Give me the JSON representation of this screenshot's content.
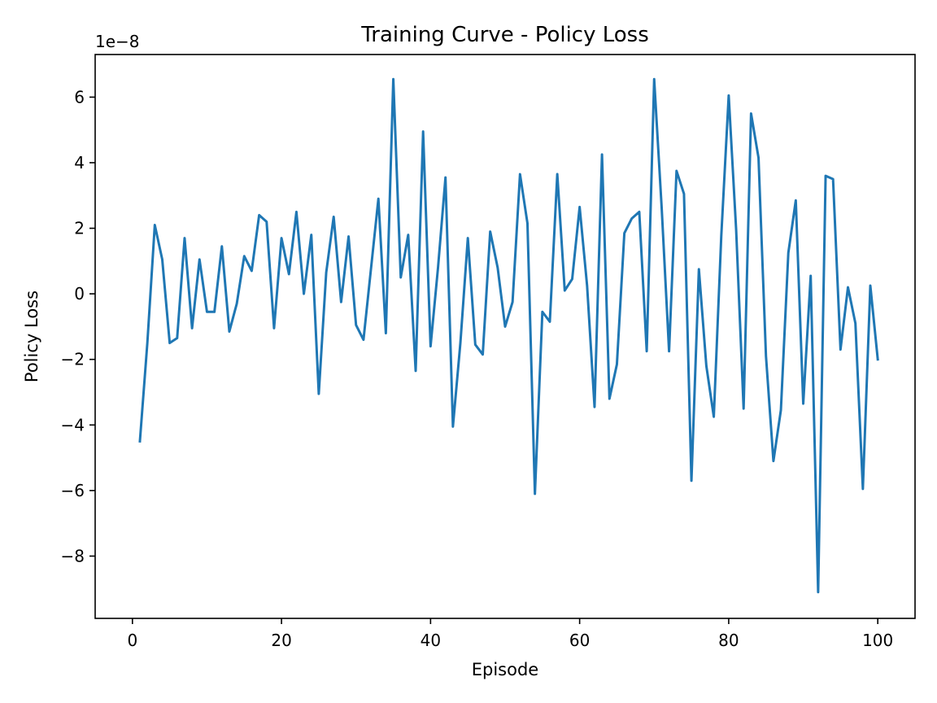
{
  "chart_data": {
    "type": "line",
    "title": "Training Curve - Policy Loss",
    "xlabel": "Episode",
    "ylabel": "Policy Loss",
    "y_offset_label": "1e−8",
    "xlim": [
      -5,
      105
    ],
    "ylim": [
      -9.9,
      7.3
    ],
    "xticks": [
      0,
      20,
      40,
      60,
      80,
      100
    ],
    "yticks": [
      -8,
      -6,
      -4,
      -2,
      0,
      2,
      4,
      6
    ],
    "ytick_labels": [
      "−8",
      "−6",
      "−4",
      "−2",
      "0",
      "2",
      "4",
      "6"
    ],
    "grid": false,
    "series": [
      {
        "color": "#1f77b4",
        "x": [
          1,
          2,
          3,
          4,
          5,
          6,
          7,
          8,
          9,
          10,
          11,
          12,
          13,
          14,
          15,
          16,
          17,
          18,
          19,
          20,
          21,
          22,
          23,
          24,
          25,
          26,
          27,
          28,
          29,
          30,
          31,
          32,
          33,
          34,
          35,
          36,
          37,
          38,
          39,
          40,
          41,
          42,
          43,
          44,
          45,
          46,
          47,
          48,
          49,
          50,
          51,
          52,
          53,
          54,
          55,
          56,
          57,
          58,
          59,
          60,
          61,
          62,
          63,
          64,
          65,
          66,
          67,
          68,
          69,
          70,
          71,
          72,
          73,
          74,
          75,
          76,
          77,
          78,
          79,
          80,
          81,
          82,
          83,
          84,
          85,
          86,
          87,
          88,
          89,
          90,
          91,
          92,
          93,
          94,
          95,
          96,
          97,
          98,
          99,
          100
        ],
        "y": [
          -4.5,
          -1.5,
          2.1,
          1.05,
          -1.5,
          -1.35,
          1.7,
          -1.05,
          1.05,
          -0.55,
          -0.55,
          1.45,
          -1.15,
          -0.3,
          1.15,
          0.7,
          2.4,
          2.2,
          -1.05,
          1.7,
          0.6,
          2.5,
          0.0,
          1.8,
          -3.05,
          0.65,
          2.35,
          -0.25,
          1.75,
          -0.95,
          -1.4,
          0.75,
          2.9,
          -1.2,
          6.55,
          0.5,
          1.8,
          -2.35,
          4.95,
          -1.6,
          0.8,
          3.55,
          -4.05,
          -1.5,
          1.7,
          -1.55,
          -1.85,
          1.9,
          0.8,
          -1.0,
          -0.25,
          3.65,
          2.15,
          -6.1,
          -0.55,
          -0.85,
          3.65,
          0.1,
          0.45,
          2.65,
          0.25,
          -3.45,
          4.25,
          -3.2,
          -2.15,
          1.85,
          2.3,
          2.5,
          -1.75,
          6.55,
          2.65,
          -1.75,
          3.75,
          3.05,
          -5.7,
          0.75,
          -2.2,
          -3.75,
          1.75,
          6.05,
          1.95,
          -3.5,
          5.5,
          4.15,
          -1.9,
          -5.1,
          -3.55,
          1.25,
          2.85,
          -3.35,
          0.55,
          -9.1,
          3.6,
          3.5,
          -1.7,
          0.2,
          -0.9,
          -5.95,
          0.25,
          -2.0
        ]
      }
    ]
  }
}
